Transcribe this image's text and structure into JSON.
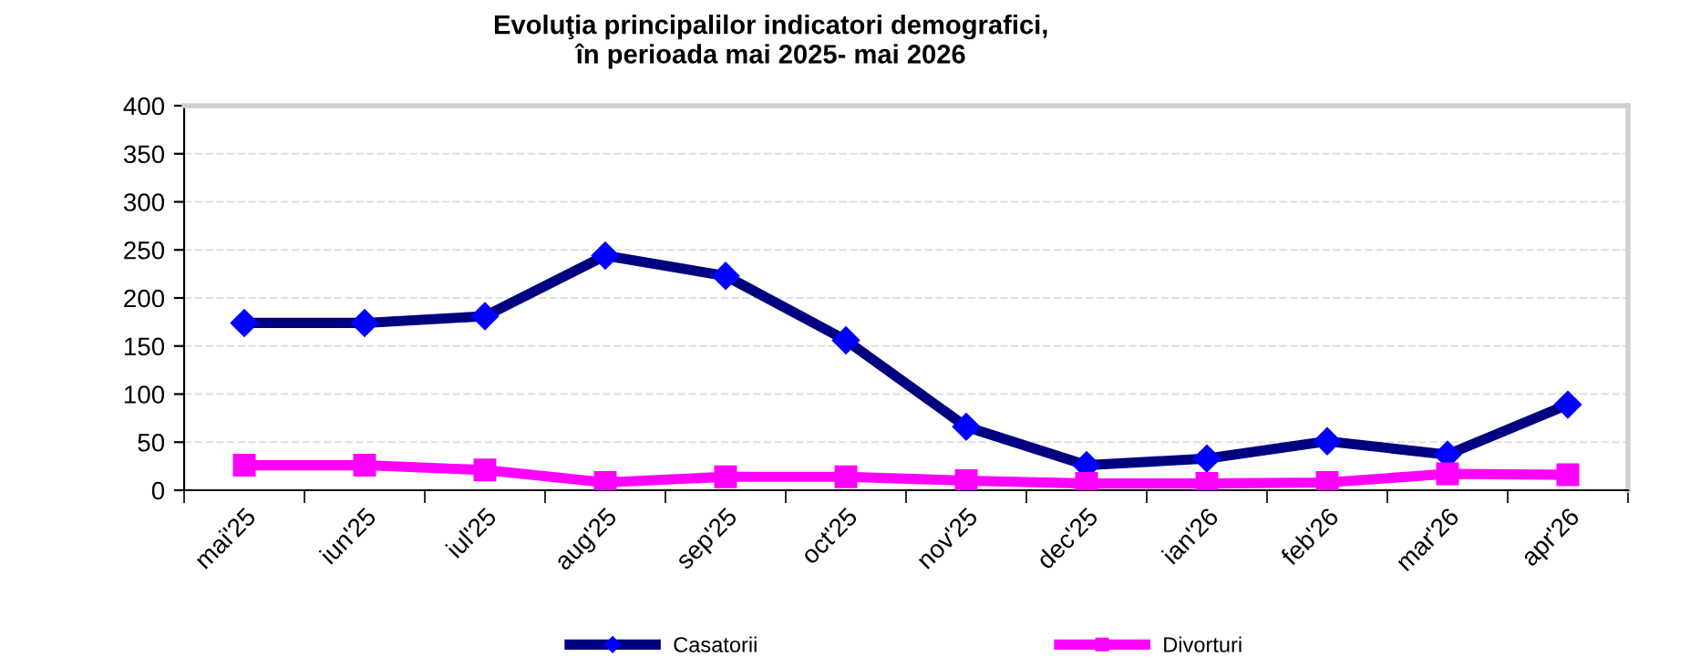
{
  "chart_data": {
    "type": "line",
    "title": "Evoluţia principalilor indicatori demografici,\nîn perioada mai 2025- mai 2026",
    "categories": [
      "mai'25",
      "iun'25",
      "iul'25",
      "aug'25",
      "sep'25",
      "oct'25",
      "nov'25",
      "dec'25",
      "ian'26",
      "feb'26",
      "mar'26",
      "apr'26"
    ],
    "series": [
      {
        "name": "Casatorii",
        "color": "#000080",
        "marker": "diamond",
        "values": [
          174,
          174,
          181,
          244,
          223,
          156,
          66,
          26,
          33,
          51,
          37,
          89
        ]
      },
      {
        "name": "Divorturi",
        "color": "#ff00ff",
        "marker": "square",
        "values": [
          26,
          26,
          21,
          8,
          14,
          14,
          10,
          7,
          7,
          8,
          17,
          16
        ]
      }
    ],
    "ylim": [
      0,
      400
    ],
    "yticks": [
      0,
      50,
      100,
      150,
      200,
      250,
      300,
      350,
      400
    ],
    "grid": "y",
    "legend": "bottom",
    "line_style": "solid"
  }
}
